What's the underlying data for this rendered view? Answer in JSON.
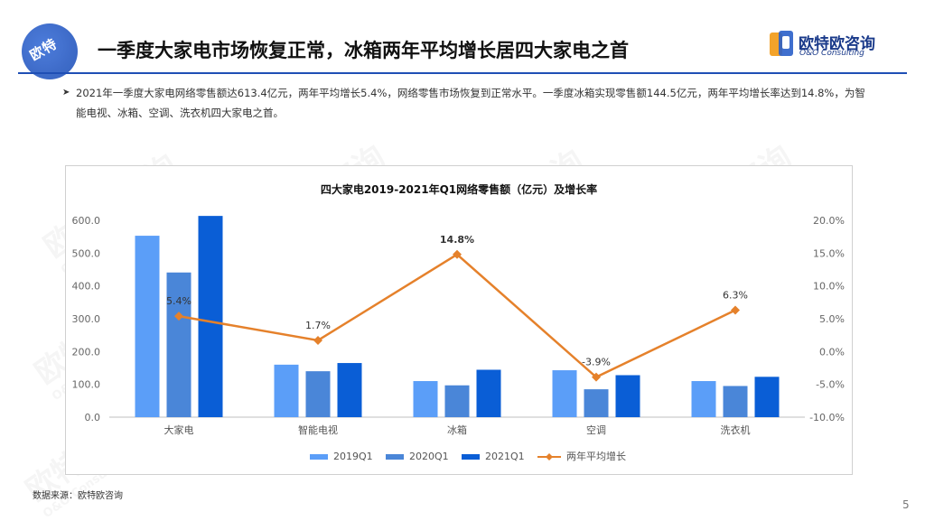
{
  "header": {
    "badge_text": "欧特",
    "title": "一季度大家电市场恢复正常，冰箱两年平均增长居四大家电之首",
    "brand_name": "欧特欧咨询",
    "brand_sub": "O&O Consulting"
  },
  "summary": {
    "bullet": "➤",
    "text": "2021年一季度大家电网络零售额达613.4亿元，两年平均增长5.4%，网络零售市场恢复到正常水平。一季度冰箱实现零售额144.5亿元，两年平均增长率达到14.8%，为智能电视、冰箱、空调、洗衣机四大家电之首。"
  },
  "chart_data": {
    "type": "bar",
    "title": "四大家电2019-2021年Q1网络零售额（亿元）及增长率",
    "categories": [
      "大家电",
      "智能电视",
      "冰箱",
      "空调",
      "洗衣机"
    ],
    "series": [
      {
        "name": "2019Q1",
        "type": "bar",
        "axis": "left",
        "color": "#5b9ef8",
        "values": [
          553,
          160,
          110,
          143,
          110
        ]
      },
      {
        "name": "2020Q1",
        "type": "bar",
        "axis": "left",
        "color": "#4a86d8",
        "values": [
          441,
          140,
          97,
          85,
          95
        ]
      },
      {
        "name": "2021Q1",
        "type": "bar",
        "axis": "left",
        "color": "#0a5ed6",
        "values": [
          613.4,
          165,
          144.5,
          128,
          123
        ]
      },
      {
        "name": "两年平均增长",
        "type": "line",
        "axis": "right",
        "color": "#e5812b",
        "values": [
          5.4,
          1.7,
          14.8,
          -3.9,
          6.3
        ],
        "labels": [
          "5.4%",
          "1.7%",
          "14.8%",
          "-3.9%",
          "6.3%"
        ]
      }
    ],
    "y_left": {
      "min": 0,
      "max": 600,
      "ticks": [
        "0.0",
        "100.0",
        "200.0",
        "300.0",
        "400.0",
        "500.0",
        "600.0"
      ]
    },
    "y_right": {
      "min": -10,
      "max": 20,
      "ticks": [
        "-10.0%",
        "-5.0%",
        "0.0%",
        "5.0%",
        "10.0%",
        "15.0%",
        "20.0%"
      ]
    },
    "legend": "bottom",
    "grid": false
  },
  "source_note": "数据来源：欧特欧咨询",
  "page_number": "5",
  "watermark": {
    "text": "欧特欧咨询",
    "sub": "O&O Consulting"
  }
}
